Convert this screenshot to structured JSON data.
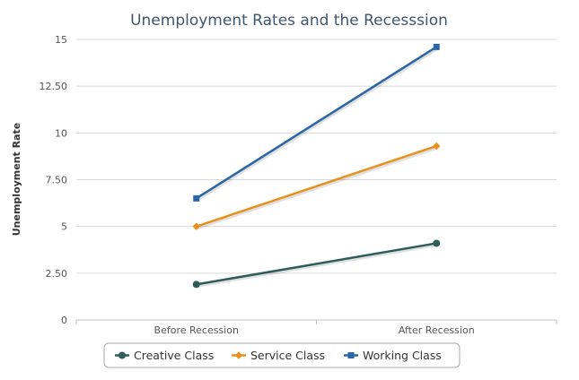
{
  "chart_data": {
    "type": "line",
    "title": "Unemployment Rates and the Recesssion",
    "xlabel": "",
    "ylabel": "Unemployment Rate",
    "categories": [
      "Before Recession",
      "After Recession"
    ],
    "ylim": [
      0,
      15
    ],
    "yticks": [
      "0",
      "2.50",
      "5",
      "7.50",
      "10",
      "12.50",
      "15"
    ],
    "grid": true,
    "legend_position": "bottom",
    "series": [
      {
        "name": "Creative Class",
        "values": [
          1.9,
          4.1
        ],
        "color": "#2d5c59",
        "marker": "circle"
      },
      {
        "name": "Service Class",
        "values": [
          5.0,
          9.3
        ],
        "color": "#e8901c",
        "marker": "diamond"
      },
      {
        "name": "Working Class",
        "values": [
          6.5,
          14.6
        ],
        "color": "#2a66a5",
        "marker": "square"
      }
    ]
  }
}
